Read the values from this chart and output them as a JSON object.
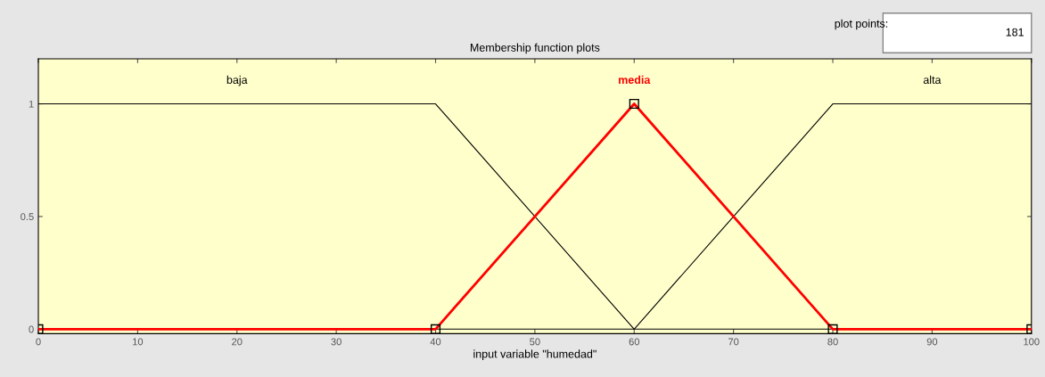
{
  "chart_data": {
    "type": "line",
    "title": "Membership function plots",
    "xlabel": "input variable \"humedad\"",
    "series": [
      {
        "name": "baja",
        "color": "#000000",
        "x": [
          0,
          40,
          60,
          100
        ],
        "values": [
          1,
          1,
          0,
          0
        ],
        "marker": "none"
      },
      {
        "name": "media",
        "color": "#ff0000",
        "x": [
          0,
          40,
          60,
          80,
          100
        ],
        "values": [
          0,
          0,
          1,
          0,
          0
        ],
        "marker": "square"
      },
      {
        "name": "alta",
        "color": "#000000",
        "x": [
          0,
          60,
          80,
          100
        ],
        "values": [
          0,
          0,
          1,
          1
        ],
        "marker": "none"
      }
    ],
    "xlim": [
      0,
      100
    ],
    "xticks": [
      0,
      10,
      20,
      30,
      40,
      50,
      60,
      70,
      80,
      90,
      100
    ],
    "ylim": [
      -0.02,
      1.2
    ],
    "yticks": [
      0,
      0.5,
      1
    ],
    "grid": false,
    "legend": false,
    "annotations": [
      "plot points:",
      "181"
    ]
  }
}
